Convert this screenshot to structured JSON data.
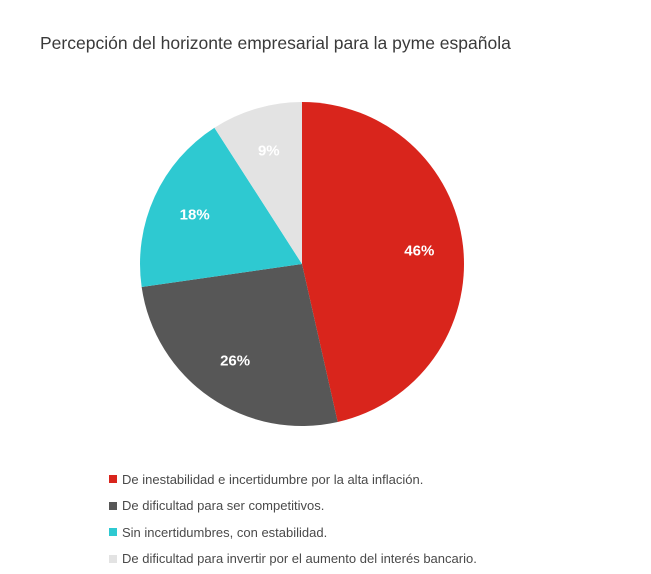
{
  "chart_data": {
    "type": "pie",
    "title": "Percepción del horizonte empresarial para la pyme española",
    "slices": [
      {
        "label": "De inestabilidad e incertidumbre por la alta inflación.",
        "value": 46,
        "display": "46%",
        "color": "#d9251c"
      },
      {
        "label": "De dificultad para ser competitivos.",
        "value": 26,
        "display": "26%",
        "color": "#575757"
      },
      {
        "label": "Sin incertidumbres, con estabilidad.",
        "value": 18,
        "display": "18%",
        "color": "#2ec9d1"
      },
      {
        "label": "De dificultad para invertir por el aumento del interés bancario.",
        "value": 9,
        "display": "9%",
        "color": "#e3e3e3"
      }
    ],
    "legend_position": "bottom"
  }
}
